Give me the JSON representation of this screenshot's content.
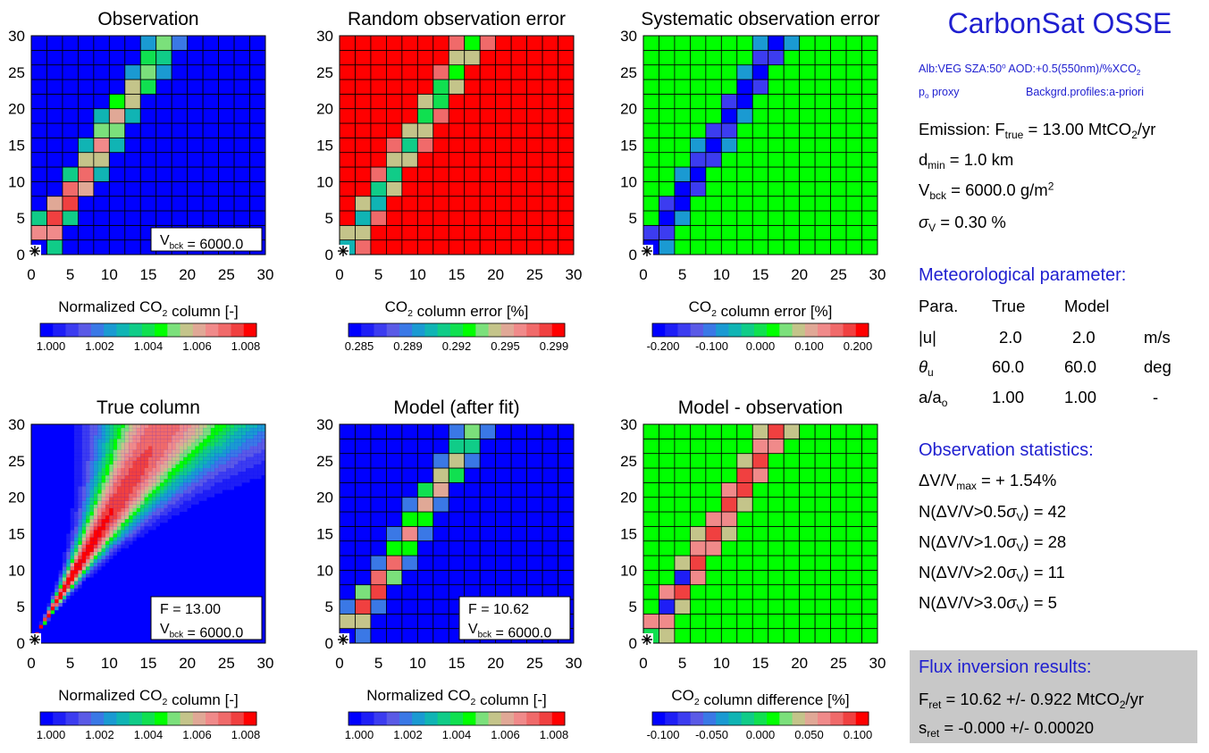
{
  "chart_data": [
    {
      "type": "heatmap",
      "title": "Observation",
      "colorbar_label": "Normalized CO₂ column [-]",
      "colorbar_ticks": [
        "1.000",
        "1.002",
        "1.004",
        "1.006",
        "1.008"
      ],
      "vmin": 1.0,
      "vmax": 1.008,
      "x_ticks": [
        "0",
        "5",
        "10",
        "15",
        "20",
        "25",
        "30"
      ],
      "y_ticks": [
        "0",
        "5",
        "10",
        "15",
        "20",
        "25",
        "30"
      ],
      "xlim": [
        0,
        30
      ],
      "ylim": [
        0,
        30
      ],
      "grid_cells": 16,
      "cell_size": 2,
      "plume_pattern": "observation",
      "source_marker": "asterisk at origin",
      "annotations": [
        "V_bck = 6000.0"
      ]
    },
    {
      "type": "heatmap",
      "title": "Random observation error",
      "colorbar_label": "CO₂ column error [%]",
      "colorbar_ticks": [
        "0.285",
        "0.289",
        "0.292",
        "0.295",
        "0.299"
      ],
      "vmin": 0.285,
      "vmax": 0.299,
      "x_ticks": [
        "0",
        "5",
        "10",
        "15",
        "20",
        "25",
        "30"
      ],
      "y_ticks": [
        "0",
        "5",
        "10",
        "15",
        "20",
        "25",
        "30"
      ],
      "xlim": [
        0,
        30
      ],
      "ylim": [
        0,
        30
      ],
      "grid_cells": 16,
      "cell_size": 2,
      "plume_pattern": "random_error",
      "source_marker": "asterisk at origin",
      "annotations": []
    },
    {
      "type": "heatmap",
      "title": "Systematic observation error",
      "colorbar_label": "CO₂ column error [%]",
      "colorbar_ticks": [
        "-0.200",
        "-0.100",
        "0.000",
        "0.100",
        "0.200"
      ],
      "vmin": -0.2,
      "vmax": 0.2,
      "x_ticks": [
        "0",
        "5",
        "10",
        "15",
        "20",
        "25",
        "30"
      ],
      "y_ticks": [
        "0",
        "5",
        "10",
        "15",
        "20",
        "25",
        "30"
      ],
      "xlim": [
        0,
        30
      ],
      "ylim": [
        0,
        30
      ],
      "grid_cells": 16,
      "cell_size": 2,
      "plume_pattern": "systematic_error",
      "source_marker": "asterisk at origin",
      "annotations": []
    },
    {
      "type": "heatmap",
      "title": "True column",
      "colorbar_label": "Normalized CO₂ column [-]",
      "colorbar_ticks": [
        "1.000",
        "1.002",
        "1.004",
        "1.006",
        "1.008"
      ],
      "vmin": 1.0,
      "vmax": 1.008,
      "x_ticks": [
        "0",
        "5",
        "10",
        "15",
        "20",
        "25",
        "30"
      ],
      "y_ticks": [
        "0",
        "5",
        "10",
        "15",
        "20",
        "25",
        "30"
      ],
      "xlim": [
        0,
        30
      ],
      "ylim": [
        0,
        30
      ],
      "grid_cells": 60,
      "cell_size": 0.5,
      "plume_pattern": "true_column",
      "source_marker": "asterisk at origin",
      "annotations": [
        "F = 13.00",
        "V_bck = 6000.0"
      ]
    },
    {
      "type": "heatmap",
      "title": "Model (after fit)",
      "colorbar_label": "Normalized CO₂ column [-]",
      "colorbar_ticks": [
        "1.000",
        "1.002",
        "1.004",
        "1.006",
        "1.008"
      ],
      "vmin": 1.0,
      "vmax": 1.008,
      "x_ticks": [
        "0",
        "5",
        "10",
        "15",
        "20",
        "25",
        "30"
      ],
      "y_ticks": [
        "0",
        "5",
        "10",
        "15",
        "20",
        "25",
        "30"
      ],
      "xlim": [
        0,
        30
      ],
      "ylim": [
        0,
        30
      ],
      "grid_cells": 16,
      "cell_size": 2,
      "plume_pattern": "model",
      "source_marker": "asterisk at origin",
      "annotations": [
        "F = 10.62",
        "V_bck = 6000.0"
      ]
    },
    {
      "type": "heatmap",
      "title": "Model - observation",
      "colorbar_label": "CO₂ column difference [%]",
      "colorbar_ticks": [
        "-0.100",
        "-0.050",
        "0.000",
        "0.050",
        "0.100"
      ],
      "vmin": -0.1,
      "vmax": 0.1,
      "x_ticks": [
        "0",
        "5",
        "10",
        "15",
        "20",
        "25",
        "30"
      ],
      "y_ticks": [
        "0",
        "5",
        "10",
        "15",
        "20",
        "25",
        "30"
      ],
      "xlim": [
        0,
        30
      ],
      "ylim": [
        0,
        30
      ],
      "grid_cells": 16,
      "cell_size": 2,
      "plume_pattern": "difference",
      "source_marker": "asterisk at origin",
      "annotations": []
    }
  ],
  "colormap": [
    "#0000ff",
    "#1e1ef6",
    "#3c3cf0",
    "#5a5ae6",
    "#3a78e6",
    "#1a9ad2",
    "#10b4b4",
    "#10cc88",
    "#10e050",
    "#00ff00",
    "#7be07b",
    "#c4c48a",
    "#e0a896",
    "#f08a8a",
    "#f06a6a",
    "#f04040",
    "#ff0000"
  ],
  "side_panel": {
    "title": "CarbonSat OSSE",
    "info_line1": "Alb:VEG SZA:50° AOD:+0.5(550nm)/%XCO₂",
    "info_line2_left": "pₒ proxy",
    "info_line2_right": "Backgrd.profiles:a-priori",
    "emission": "Emission: F_true = 13.00 MtCO₂/yr",
    "dmin": "d_min = 1.0 km",
    "vbck": "V_bck = 6000.0 g/m²",
    "sigma": "σ_V = 0.30 %",
    "met_heading": "Meteorological parameter:",
    "met_headers": [
      "Para.",
      "True",
      "Model",
      ""
    ],
    "met_rows": [
      [
        "|u|",
        "2.0",
        "2.0",
        "m/s"
      ],
      [
        "θ_u",
        "60.0",
        "60.0",
        "deg"
      ],
      [
        "a/aₒ",
        "1.00",
        "1.00",
        "-"
      ]
    ],
    "stats_heading": "Observation statistics:",
    "stats": [
      "ΔV/V_max = + 1.54%",
      "N(ΔV/V>0.5σ_V) = 42",
      "N(ΔV/V>1.0σ_V) = 28",
      "N(ΔV/V>2.0σ_V) = 11",
      "N(ΔV/V>3.0σ_V) = 5"
    ],
    "flux_heading": "Flux inversion results:",
    "flux_fret": "F_ret = 10.62 +/- 0.922 MtCO₂/yr",
    "flux_sret": "s_ret = -0.000 +/- 0.00020"
  }
}
